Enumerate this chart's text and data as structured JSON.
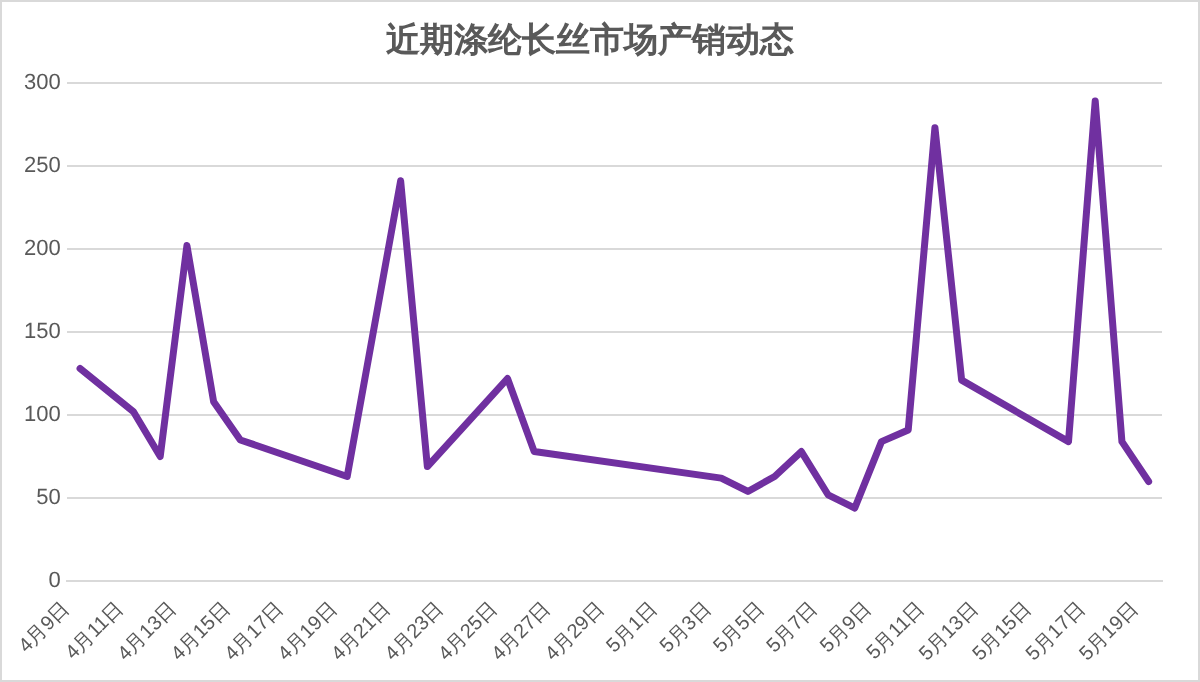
{
  "chart_data": {
    "type": "line",
    "title": "近期涤纶长丝市场产销动态",
    "x": [
      "--04-09T12:00",
      "--04-11T12:00",
      "--04-12T12:00",
      "--04-13T12:00",
      "--04-14T12:00",
      "--04-15T12:00",
      "--04-19T12:00",
      "--04-21T12:00",
      "--04-22T12:00",
      "--04-25T12:00",
      "--04-26T12:00",
      "--05-03T12:00",
      "--05-04T12:00",
      "--05-05T12:00",
      "--05-06T12:00",
      "--05-07T12:00",
      "--05-08T12:00",
      "--05-09T12:00",
      "--05-10T12:00",
      "--05-11T12:00",
      "--05-12T12:00",
      "--05-16T12:00",
      "--05-17T12:00",
      "--05-18T12:00",
      "--05-19T12:00"
    ],
    "series": [
      {
        "color": "#7030a0",
        "values": [
          128,
          102,
          75,
          202,
          108,
          85,
          63,
          241,
          69,
          122,
          78,
          62,
          54,
          63,
          78,
          52,
          44,
          84,
          91,
          273,
          121,
          84,
          289,
          84,
          60
        ]
      }
    ],
    "xlim": [
      "--04-09",
      "--05-20"
    ],
    "xticks": [
      {
        "value": "--04-09",
        "label": "4月9日"
      },
      {
        "value": "--04-11",
        "label": "4月11日"
      },
      {
        "value": "--04-13",
        "label": "4月13日"
      },
      {
        "value": "--04-15",
        "label": "4月15日"
      },
      {
        "value": "--04-17",
        "label": "4月17日"
      },
      {
        "value": "--04-19",
        "label": "4月19日"
      },
      {
        "value": "--04-21",
        "label": "4月21日"
      },
      {
        "value": "--04-23",
        "label": "4月23日"
      },
      {
        "value": "--04-25",
        "label": "4月25日"
      },
      {
        "value": "--04-27",
        "label": "4月27日"
      },
      {
        "value": "--04-29",
        "label": "4月29日"
      },
      {
        "value": "--05-01",
        "label": "5月1日"
      },
      {
        "value": "--05-03",
        "label": "5月3日"
      },
      {
        "value": "--05-05",
        "label": "5月5日"
      },
      {
        "value": "--05-07",
        "label": "5月7日"
      },
      {
        "value": "--05-09",
        "label": "5月9日"
      },
      {
        "value": "--05-11",
        "label": "5月11日"
      },
      {
        "value": "--05-13",
        "label": "5月13日"
      },
      {
        "value": "--05-15",
        "label": "5月15日"
      },
      {
        "value": "--05-17",
        "label": "5月17日"
      },
      {
        "value": "--05-19",
        "label": "5月19日"
      }
    ],
    "ylim": [
      0,
      300
    ],
    "yticks": [
      0,
      50,
      100,
      150,
      200,
      250,
      300
    ],
    "grid": "y",
    "legend": false,
    "marker": "none",
    "line_style": "solid"
  }
}
